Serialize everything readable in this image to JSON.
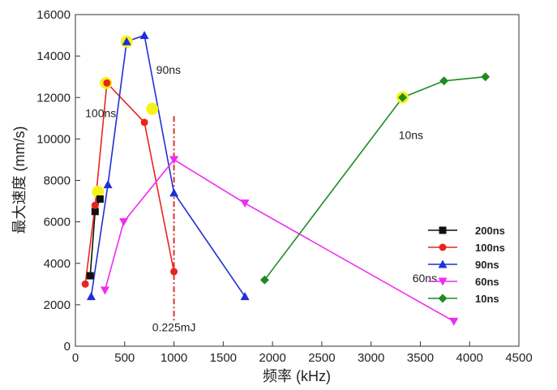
{
  "chart_data": {
    "type": "line",
    "title": "",
    "xlabel": "频率 (kHz)",
    "ylabel": "最大速度 (mm/s)",
    "xlim": [
      0,
      4500
    ],
    "ylim": [
      0,
      16000
    ],
    "xticks": [
      0,
      500,
      1000,
      1500,
      2000,
      2500,
      3000,
      3500,
      4000,
      4500
    ],
    "yticks": [
      0,
      2000,
      4000,
      6000,
      8000,
      10000,
      12000,
      14000,
      16000
    ],
    "grid": false,
    "legend_position": "right",
    "series": [
      {
        "name": "200ns",
        "color": "#111111",
        "marker": "square",
        "x": [
          150,
          200,
          250
        ],
        "y": [
          3400,
          6500,
          7100
        ]
      },
      {
        "name": "100ns",
        "color": "#e8241d",
        "marker": "circle",
        "x": [
          100,
          200,
          320,
          700,
          1000
        ],
        "y": [
          3000,
          6800,
          12700,
          10800,
          3600
        ]
      },
      {
        "name": "90ns",
        "color": "#1f2fd6",
        "marker": "triangle-up",
        "x": [
          160,
          330,
          520,
          700,
          1000,
          1720
        ],
        "y": [
          2400,
          7800,
          14700,
          15000,
          7400,
          2400
        ]
      },
      {
        "name": "60ns",
        "color": "#f02bf0",
        "marker": "triangle-down",
        "x": [
          300,
          490,
          1000,
          1720,
          3840
        ],
        "y": [
          2700,
          6000,
          9000,
          6900,
          1200
        ]
      },
      {
        "name": "10ns",
        "color": "#1e8c1e",
        "marker": "diamond",
        "x": [
          1920,
          3320,
          3740,
          4160
        ],
        "y": [
          3200,
          12000,
          12800,
          13000
        ]
      }
    ],
    "highlights": [
      {
        "x": 230,
        "y": 7450
      },
      {
        "x": 310,
        "y": 12700
      },
      {
        "x": 520,
        "y": 14700
      },
      {
        "x": 780,
        "y": 11450
      },
      {
        "x": 3320,
        "y": 12000
      }
    ],
    "highlight_color": "#f5f21a",
    "vline": {
      "x": 1000,
      "y0": 1200,
      "y1": 11100,
      "color": "#d9352a",
      "label": "0.225mJ"
    },
    "annotations": [
      {
        "text": "90ns",
        "x": 820,
        "y": 13150
      },
      {
        "text": "100ns",
        "x": 100,
        "y": 11050
      },
      {
        "text": "10ns",
        "x": 3280,
        "y": 10000
      },
      {
        "text": "60ns",
        "x": 3420,
        "y": 3100
      }
    ]
  }
}
